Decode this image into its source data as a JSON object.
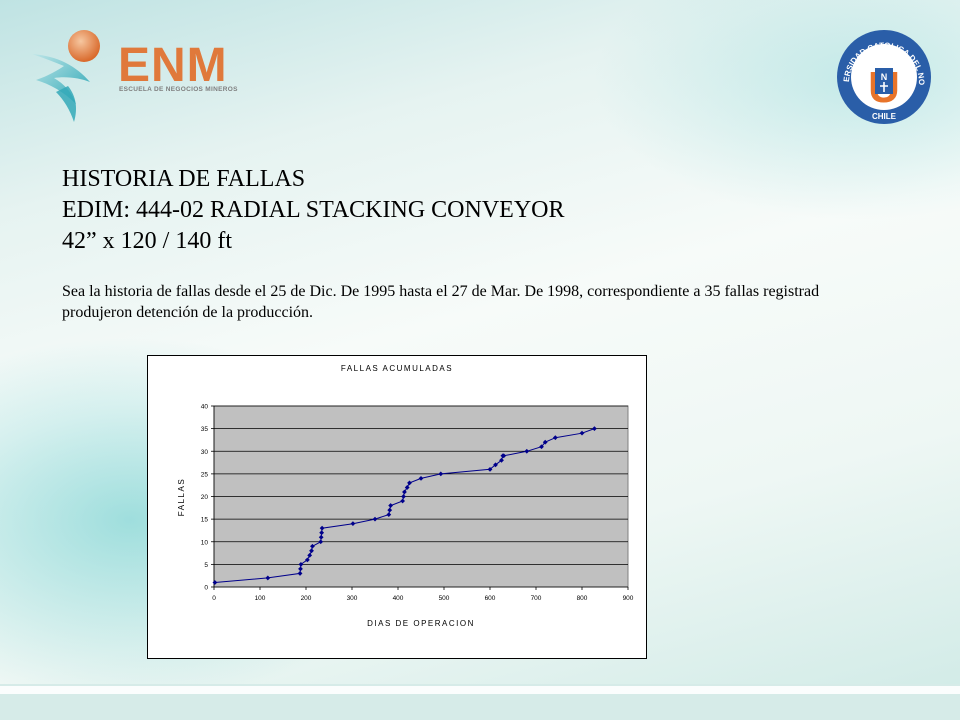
{
  "header": {
    "brand_name": "ENM",
    "brand_subtitle": "ESCUELA DE NEGOCIOS MINEROS",
    "university_ring_text": "UNIVERSIDAD CATOLICA DEL NORTE",
    "university_country": "CHILE",
    "university_letter": "U",
    "university_inner_letter": "N"
  },
  "slide": {
    "title_lines": [
      "HISTORIA DE FALLAS",
      "EDIM:  444-02  RADIAL  STACKING CONVEYOR",
      "42” x 120 / 140 ft"
    ],
    "intro_lines": [
      "Sea la historia de fallas desde el 25 de Dic. De 1995  hasta el 27 de Mar. De 1998,  correspondiente a 35 fallas registrad",
      "produjeron detención de la producción."
    ]
  },
  "colors": {
    "series": "#00008b",
    "plot_bg": "#c0c0c0",
    "brand_orange": "#e0793b",
    "ucn_blue": "#2a5ea8",
    "ucn_orange": "#e8742a"
  },
  "chart_data": {
    "type": "line",
    "title": "FALLAS ACUMULADAS",
    "xlabel": "DIAS DE OPERACION",
    "ylabel": "FALLAS",
    "xlim": [
      0,
      900
    ],
    "ylim": [
      0,
      40
    ],
    "xticks": [
      0,
      100,
      200,
      300,
      400,
      500,
      600,
      700,
      800,
      900
    ],
    "yticks": [
      0,
      5,
      10,
      15,
      20,
      25,
      30,
      35,
      40
    ],
    "grid": "horizontal",
    "legend": "none",
    "marker": "diamond",
    "series": [
      {
        "x": [
          2,
          117,
          187,
          188,
          189,
          203,
          208,
          212,
          214,
          232,
          233,
          234,
          235,
          302,
          350,
          380,
          382,
          384,
          410,
          412,
          414,
          420,
          425,
          450,
          493,
          600,
          612,
          625,
          628,
          630,
          680,
          712,
          720,
          742,
          800,
          827
        ],
        "y": [
          1,
          2,
          3,
          4,
          5,
          6,
          7,
          8,
          9,
          10,
          11,
          12,
          13,
          14,
          15,
          16,
          17,
          18,
          19,
          20,
          21,
          22,
          23,
          24,
          25,
          26,
          27,
          28,
          29,
          29,
          30,
          31,
          32,
          33,
          34,
          35
        ]
      }
    ]
  }
}
